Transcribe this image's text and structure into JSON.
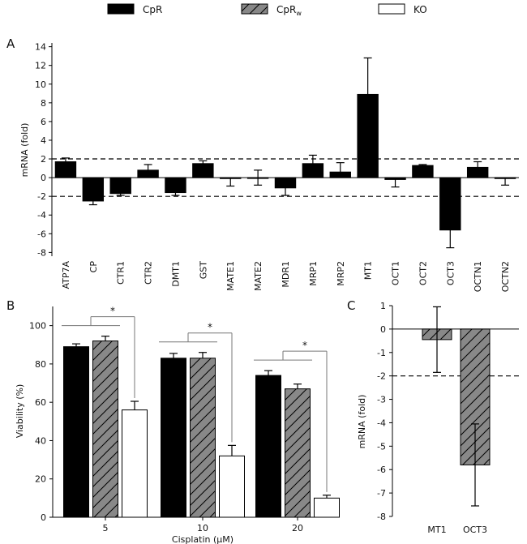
{
  "legend": {
    "items": [
      {
        "name": "CpR",
        "sub": "",
        "fill": "#000000",
        "hatch": false
      },
      {
        "name": "CpR",
        "sub": "w",
        "fill": "#888888",
        "hatch": true
      },
      {
        "name": "KO",
        "sub": "",
        "fill": "#ffffff",
        "hatch": false
      }
    ]
  },
  "colors": {
    "cpr": "#000000",
    "cprw": "#888888",
    "ko": "#ffffff"
  },
  "chart_data": [
    {
      "panel": "A",
      "type": "bar",
      "title": "",
      "xlabel": "",
      "ylabel": "mRNA (fold)",
      "ylim": [
        -8.4,
        14.4
      ],
      "yticks": [
        -8,
        -6,
        -4,
        -2,
        0,
        2,
        4,
        6,
        8,
        10,
        12,
        14
      ],
      "threshold_lines": [
        2,
        -2
      ],
      "categories": [
        "ATP7A",
        "CP",
        "CTR1",
        "CTR2",
        "DMT1",
        "GST",
        "MATE1",
        "MATE2",
        "MDR1",
        "MRP1",
        "MRP2",
        "MT1",
        "OCT1",
        "OCT2",
        "OCT3",
        "OCTN1",
        "OCTN2"
      ],
      "series": [
        {
          "name": "CpR",
          "values": [
            1.7,
            -2.5,
            -1.7,
            0.8,
            -1.6,
            1.5,
            -0.1,
            0.0,
            -1.1,
            1.5,
            0.6,
            8.9,
            -0.2,
            1.3,
            -5.6,
            1.1,
            -0.1
          ],
          "errors": [
            0.4,
            0.4,
            0.2,
            0.6,
            0.3,
            0.3,
            0.8,
            0.8,
            0.8,
            0.9,
            1.0,
            3.9,
            0.8,
            0.1,
            1.9,
            0.6,
            0.7
          ]
        }
      ]
    },
    {
      "panel": "B",
      "type": "bar",
      "title": "",
      "xlabel": "Cisplatin (μM)",
      "ylabel": "Viability (%)",
      "ylim": [
        0,
        110
      ],
      "yticks": [
        0,
        20,
        40,
        60,
        80,
        100
      ],
      "categories": [
        "5",
        "10",
        "20"
      ],
      "series": [
        {
          "name": "CpR",
          "values": [
            89,
            83,
            74
          ],
          "errors": [
            1.5,
            2.5,
            2.5
          ]
        },
        {
          "name": "CpRw",
          "values": [
            92,
            83,
            67
          ],
          "errors": [
            2.5,
            3.0,
            2.5
          ]
        },
        {
          "name": "KO",
          "values": [
            56,
            32,
            10
          ],
          "errors": [
            4.5,
            5.5,
            1.5
          ]
        }
      ],
      "significance": [
        {
          "group": "5",
          "label": "*"
        },
        {
          "group": "10",
          "label": "*"
        },
        {
          "group": "20",
          "label": "*"
        }
      ]
    },
    {
      "panel": "C",
      "type": "bar",
      "title": "",
      "xlabel": "",
      "ylabel": "mRNA (fold)",
      "ylim": [
        -8,
        1
      ],
      "yticks": [
        -8,
        -7,
        -6,
        -5,
        -4,
        -3,
        -2,
        -1,
        0,
        1
      ],
      "threshold_lines": [
        -2
      ],
      "categories": [
        "MT1",
        "OCT3"
      ],
      "series": [
        {
          "name": "CpRw",
          "values": [
            -0.45,
            -5.8
          ],
          "errors": [
            1.4,
            1.75
          ]
        }
      ]
    }
  ],
  "panel_labels": {
    "a": "A",
    "b": "B",
    "c": "C"
  }
}
